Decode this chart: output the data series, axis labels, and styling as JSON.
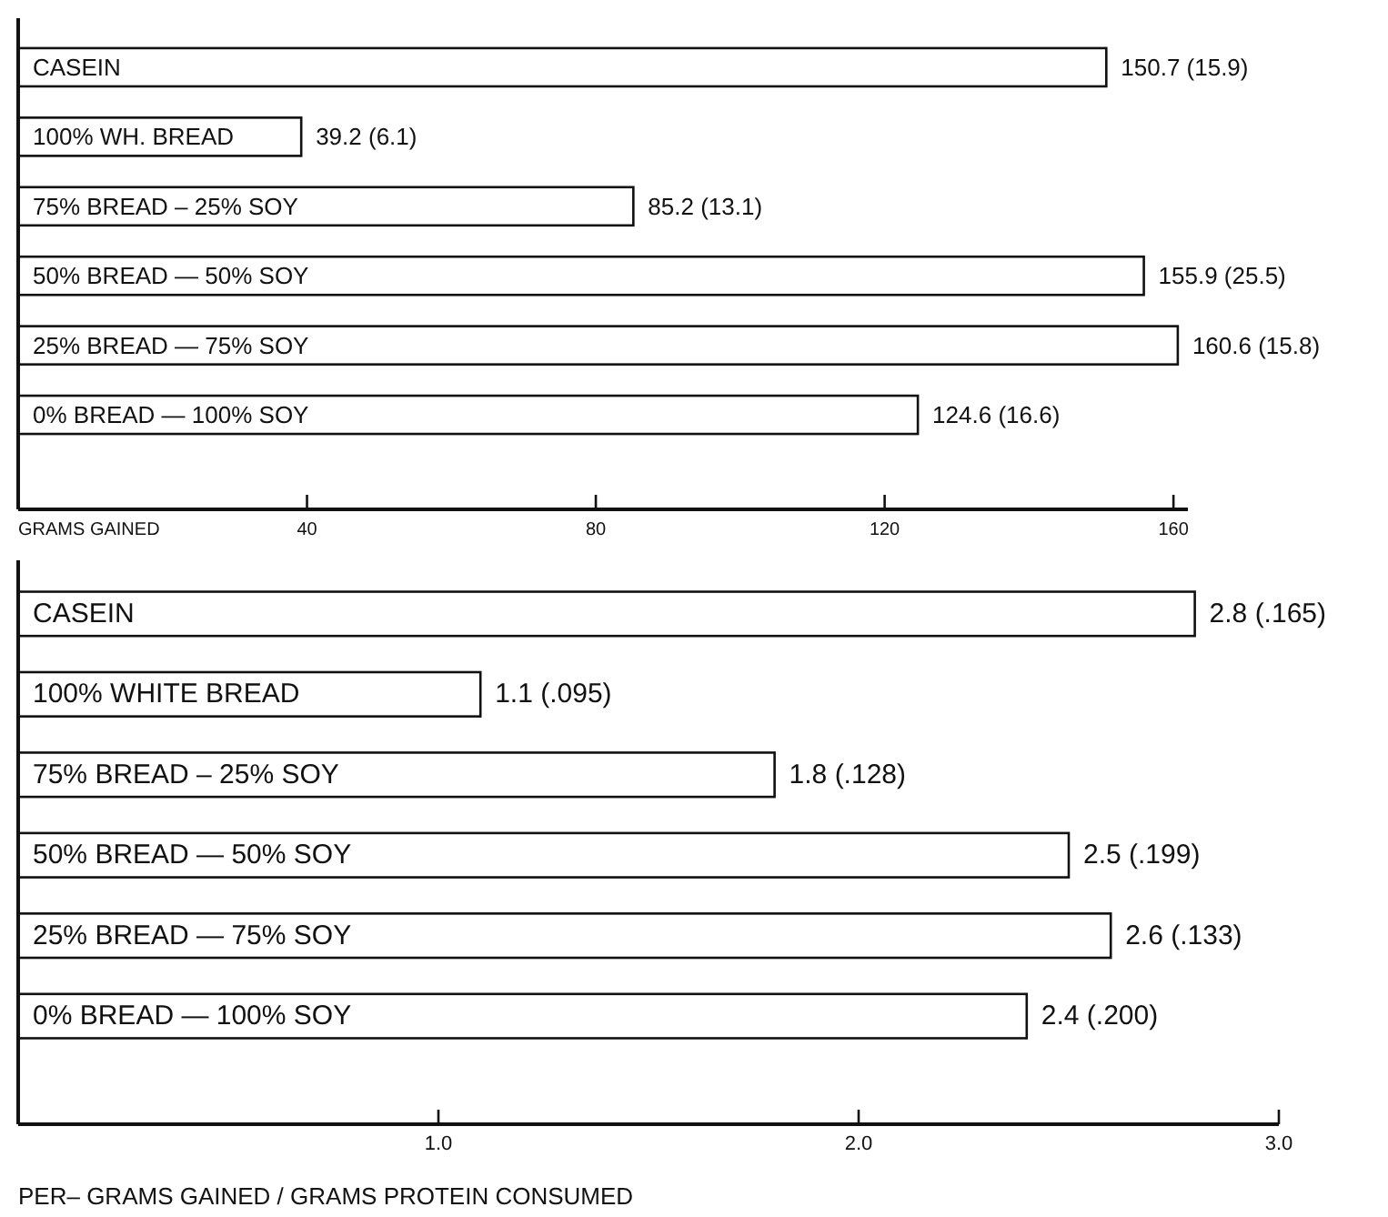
{
  "chart_data": [
    {
      "type": "bar",
      "orientation": "horizontal",
      "xlabel": "GRAMS GAINED",
      "categories": [
        "CASEIN",
        "100% WH. BREAD",
        "75% BREAD – 25% SOY",
        "50% BREAD — 50% SOY",
        "25% BREAD — 75% SOY",
        "0% BREAD — 100% SOY"
      ],
      "values": [
        150.7,
        39.2,
        85.2,
        155.9,
        160.6,
        124.6
      ],
      "value_labels": [
        "150.7 (15.9)",
        "39.2 (6.1)",
        "85.2 (13.1)",
        "155.9 (25.5)",
        "160.6 (15.8)",
        "124.6 (16.6)"
      ],
      "color": "#ffffff",
      "xlim": [
        0,
        162
      ],
      "xticks": [
        40,
        80,
        120,
        160
      ],
      "grid": false
    },
    {
      "type": "bar",
      "orientation": "horizontal",
      "xlabel": "PER– GRAMS GAINED / GRAMS PROTEIN CONSUMED",
      "categories": [
        "CASEIN",
        "100% WHITE BREAD",
        "75% BREAD – 25% SOY",
        "50% BREAD — 50% SOY",
        "25% BREAD — 75% SOY",
        "0% BREAD — 100% SOY"
      ],
      "values": [
        2.8,
        1.1,
        1.8,
        2.5,
        2.6,
        2.4
      ],
      "value_labels": [
        "2.8 (.165)",
        "1.1 (.095)",
        "1.8 (.128)",
        "2.5 (.199)",
        "2.6 (.133)",
        "2.4 (.200)"
      ],
      "color": "#ffffff",
      "xlim": [
        0,
        3
      ],
      "xticks": [
        {
          "value": 1,
          "label": "1.0"
        },
        {
          "value": 2,
          "label": "2.0"
        },
        {
          "value": 3,
          "label": "3.0"
        }
      ],
      "grid": false
    }
  ]
}
